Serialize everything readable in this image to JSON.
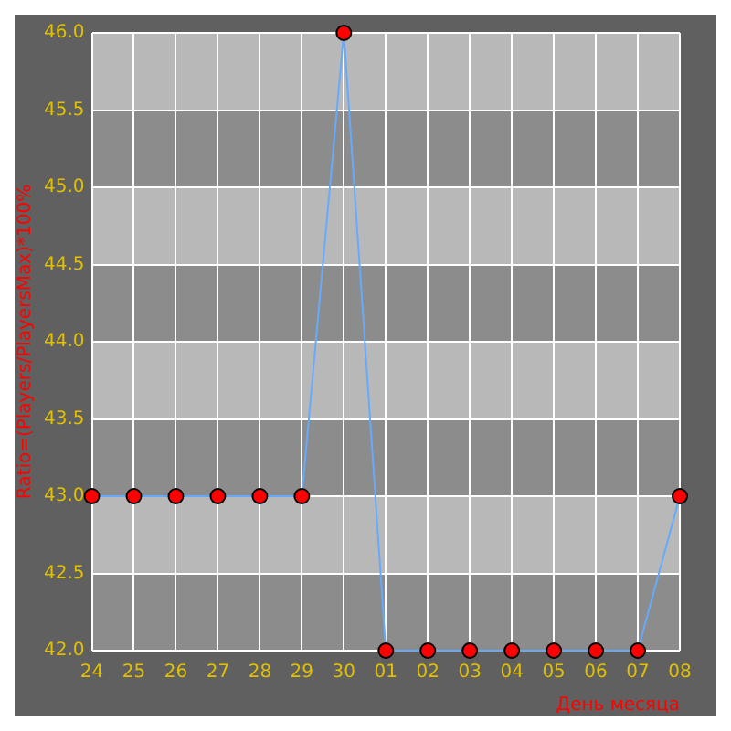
{
  "chart_data": {
    "type": "line",
    "xlabel": "День месяца",
    "ylabel": "Ratio=(Players/PlayersMax)*100%",
    "categories": [
      "24",
      "25",
      "26",
      "27",
      "28",
      "29",
      "30",
      "01",
      "02",
      "03",
      "04",
      "05",
      "06",
      "07",
      "08"
    ],
    "series": [
      {
        "color": "#66aaff",
        "values": [
          43,
          43,
          43,
          43,
          43,
          43,
          46,
          42,
          42,
          42,
          42,
          42,
          42,
          42,
          43
        ]
      }
    ],
    "ylim": [
      42,
      46
    ],
    "yticks": [
      {
        "value": 42,
        "label": "42.0"
      },
      42.5,
      {
        "value": 43,
        "label": "43.0"
      },
      43.5,
      {
        "value": 44,
        "label": "44.0"
      },
      44.5,
      {
        "value": 45,
        "label": "45.0"
      },
      45.5,
      {
        "value": 46,
        "label": "46.0"
      }
    ],
    "grid": true,
    "marker": "circle",
    "legend": false
  }
}
